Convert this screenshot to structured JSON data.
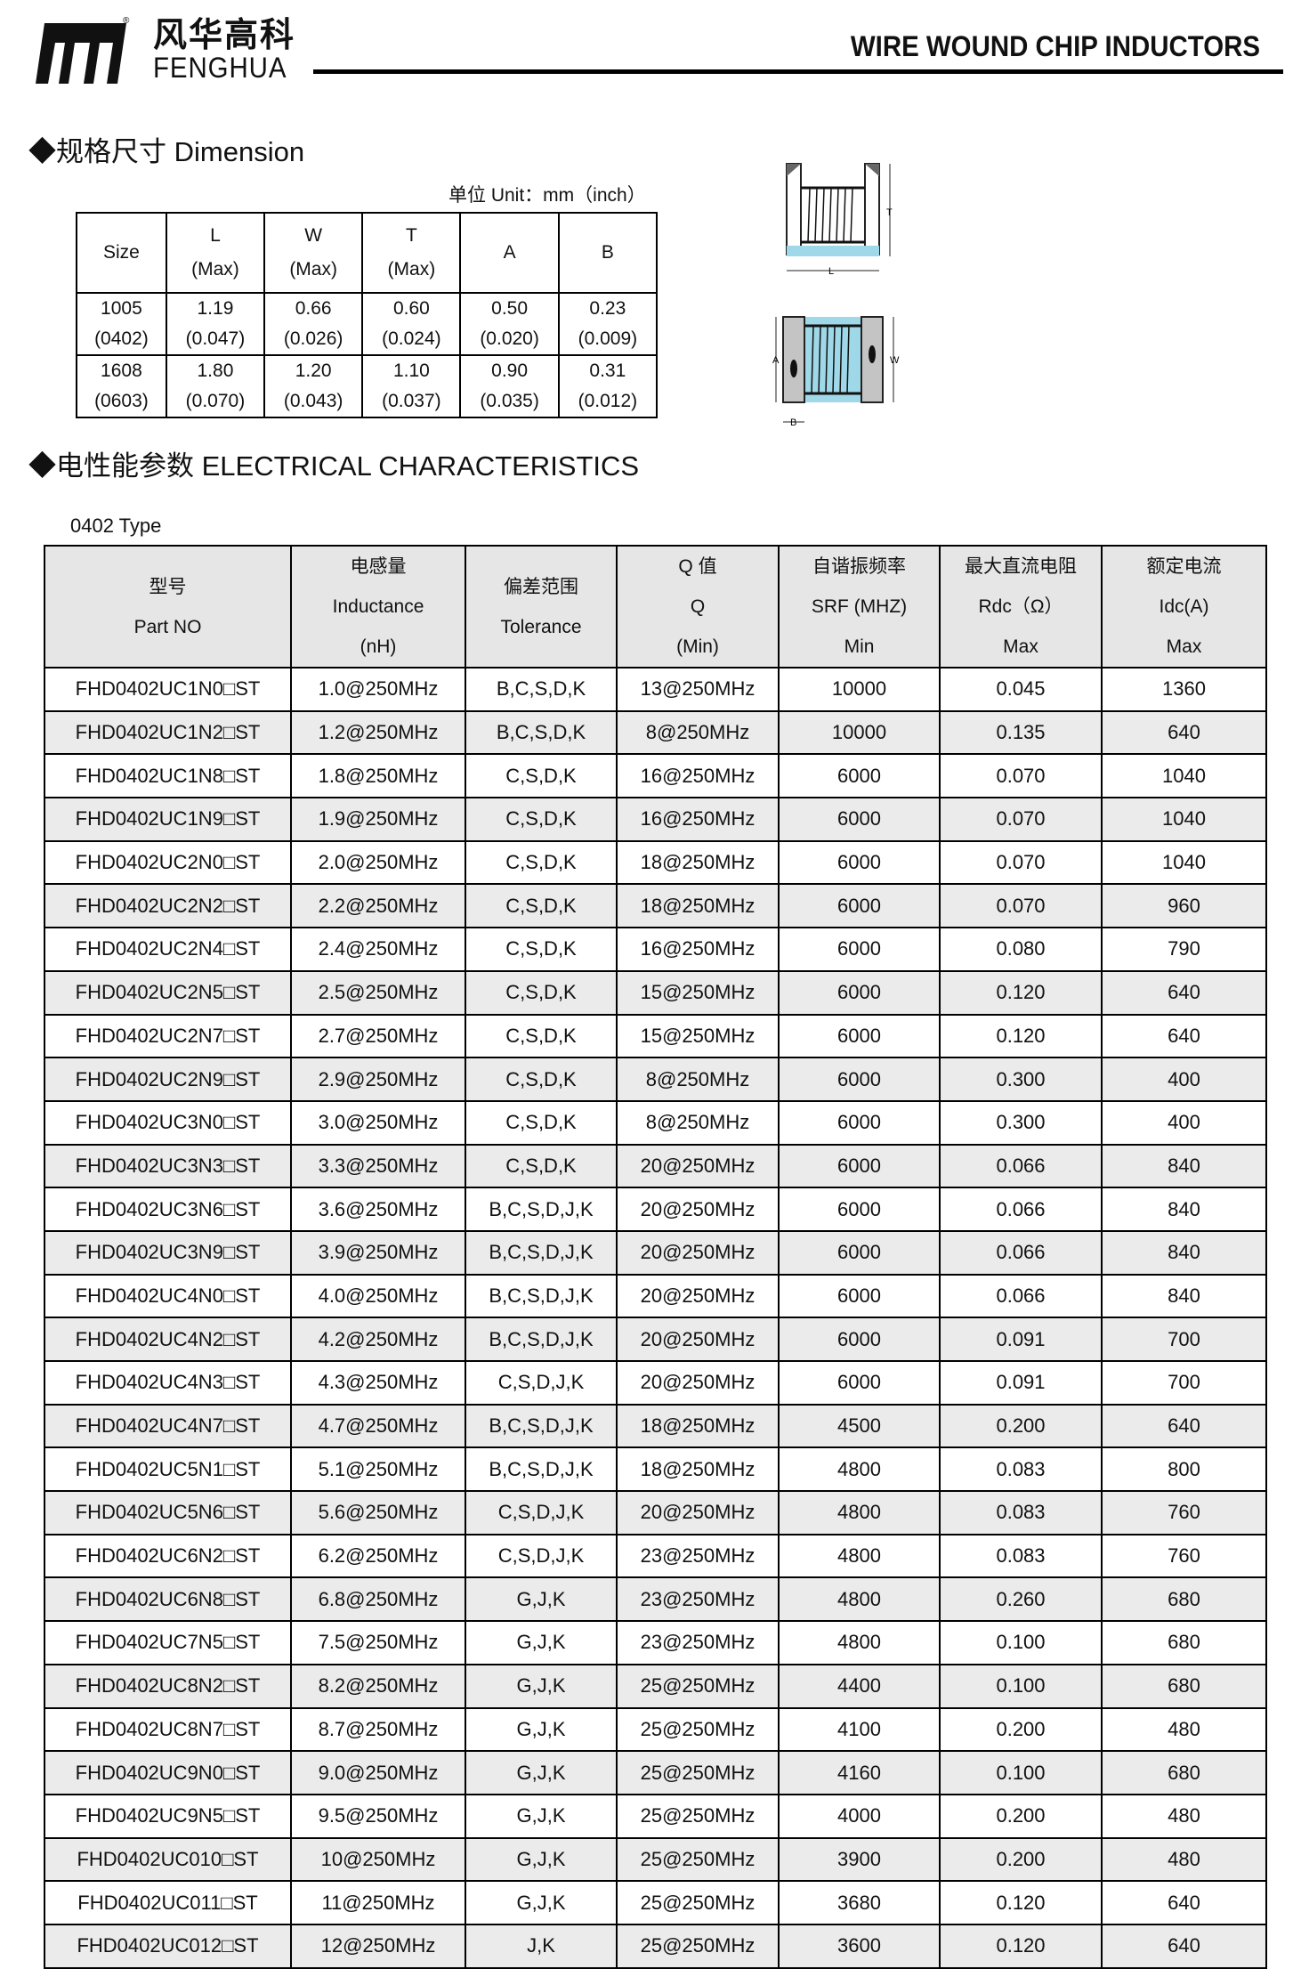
{
  "header": {
    "brand_cn": "风华高科",
    "brand_en": "FENGHUA",
    "logo_mark": "®",
    "title": "WIRE WOUND CHIP INDUCTORS"
  },
  "dimension": {
    "title": "◆规格尺寸 Dimension",
    "unit": "单位 Unit：mm（inch）",
    "headers": [
      [
        "Size",
        ""
      ],
      [
        "L",
        "(Max)"
      ],
      [
        "W",
        "(Max)"
      ],
      [
        "T",
        "(Max)"
      ],
      [
        "A",
        ""
      ],
      [
        "B",
        ""
      ]
    ],
    "rows": [
      [
        [
          "1005",
          "(0402)"
        ],
        [
          "1.19",
          "(0.047)"
        ],
        [
          "0.66",
          "(0.026)"
        ],
        [
          "0.60",
          "(0.024)"
        ],
        [
          "0.50",
          "(0.020)"
        ],
        [
          "0.23",
          "(0.009)"
        ]
      ],
      [
        [
          "1608",
          "(0603)"
        ],
        [
          "1.80",
          "(0.070)"
        ],
        [
          "1.20",
          "(0.043)"
        ],
        [
          "1.10",
          "(0.037)"
        ],
        [
          "0.90",
          "(0.035)"
        ],
        [
          "0.31",
          "(0.012)"
        ]
      ]
    ],
    "diagram_labels": {
      "T": "T",
      "L": "L",
      "A": "A",
      "W": "W",
      "B": "B"
    }
  },
  "electrical": {
    "title": "◆电性能参数  ELECTRICAL CHARACTERISTICS",
    "type_label": "0402 Type",
    "headers": [
      [
        "型号",
        "Part NO"
      ],
      [
        "电感量",
        "Inductance",
        "(nH)"
      ],
      [
        "偏差范围",
        "Tolerance"
      ],
      [
        "Q 值",
        "Q",
        "(Min)"
      ],
      [
        "自谐振频率",
        "SRF (MHZ)",
        "Min"
      ],
      [
        "最大直流电阻",
        "Rdc（Ω）",
        "Max"
      ],
      [
        "额定电流",
        "Idc(A)",
        "Max"
      ]
    ],
    "rows": [
      [
        "FHD0402UC1N0□ST",
        "1.0@250MHz",
        "B,C,S,D,K",
        "13@250MHz",
        "10000",
        "0.045",
        "1360"
      ],
      [
        "FHD0402UC1N2□ST",
        "1.2@250MHz",
        "B,C,S,D,K",
        "8@250MHz",
        "10000",
        "0.135",
        "640"
      ],
      [
        "FHD0402UC1N8□ST",
        "1.8@250MHz",
        "C,S,D,K",
        "16@250MHz",
        "6000",
        "0.070",
        "1040"
      ],
      [
        "FHD0402UC1N9□ST",
        "1.9@250MHz",
        "C,S,D,K",
        "16@250MHz",
        "6000",
        "0.070",
        "1040"
      ],
      [
        "FHD0402UC2N0□ST",
        "2.0@250MHz",
        "C,S,D,K",
        "18@250MHz",
        "6000",
        "0.070",
        "1040"
      ],
      [
        "FHD0402UC2N2□ST",
        "2.2@250MHz",
        "C,S,D,K",
        "18@250MHz",
        "6000",
        "0.070",
        "960"
      ],
      [
        "FHD0402UC2N4□ST",
        "2.4@250MHz",
        "C,S,D,K",
        "16@250MHz",
        "6000",
        "0.080",
        "790"
      ],
      [
        "FHD0402UC2N5□ST",
        "2.5@250MHz",
        "C,S,D,K",
        "15@250MHz",
        "6000",
        "0.120",
        "640"
      ],
      [
        "FHD0402UC2N7□ST",
        "2.7@250MHz",
        "C,S,D,K",
        "15@250MHz",
        "6000",
        "0.120",
        "640"
      ],
      [
        "FHD0402UC2N9□ST",
        "2.9@250MHz",
        "C,S,D,K",
        "8@250MHz",
        "6000",
        "0.300",
        "400"
      ],
      [
        "FHD0402UC3N0□ST",
        "3.0@250MHz",
        "C,S,D,K",
        "8@250MHz",
        "6000",
        "0.300",
        "400"
      ],
      [
        "FHD0402UC3N3□ST",
        "3.3@250MHz",
        "C,S,D,K",
        "20@250MHz",
        "6000",
        "0.066",
        "840"
      ],
      [
        "FHD0402UC3N6□ST",
        "3.6@250MHz",
        "B,C,S,D,J,K",
        "20@250MHz",
        "6000",
        "0.066",
        "840"
      ],
      [
        "FHD0402UC3N9□ST",
        "3.9@250MHz",
        "B,C,S,D,J,K",
        "20@250MHz",
        "6000",
        "0.066",
        "840"
      ],
      [
        "FHD0402UC4N0□ST",
        "4.0@250MHz",
        "B,C,S,D,J,K",
        "20@250MHz",
        "6000",
        "0.066",
        "840"
      ],
      [
        "FHD0402UC4N2□ST",
        "4.2@250MHz",
        "B,C,S,D,J,K",
        "20@250MHz",
        "6000",
        "0.091",
        "700"
      ],
      [
        "FHD0402UC4N3□ST",
        "4.3@250MHz",
        "C,S,D,J,K",
        "20@250MHz",
        "6000",
        "0.091",
        "700"
      ],
      [
        "FHD0402UC4N7□ST",
        "4.7@250MHz",
        "B,C,S,D,J,K",
        "18@250MHz",
        "4500",
        "0.200",
        "640"
      ],
      [
        "FHD0402UC5N1□ST",
        "5.1@250MHz",
        "B,C,S,D,J,K",
        "18@250MHz",
        "4800",
        "0.083",
        "800"
      ],
      [
        "FHD0402UC5N6□ST",
        "5.6@250MHz",
        "C,S,D,J,K",
        "20@250MHz",
        "4800",
        "0.083",
        "760"
      ],
      [
        "FHD0402UC6N2□ST",
        "6.2@250MHz",
        "C,S,D,J,K",
        "23@250MHz",
        "4800",
        "0.083",
        "760"
      ],
      [
        "FHD0402UC6N8□ST",
        "6.8@250MHz",
        "G,J,K",
        "23@250MHz",
        "4800",
        "0.260",
        "680"
      ],
      [
        "FHD0402UC7N5□ST",
        "7.5@250MHz",
        "G,J,K",
        "23@250MHz",
        "4800",
        "0.100",
        "680"
      ],
      [
        "FHD0402UC8N2□ST",
        "8.2@250MHz",
        "G,J,K",
        "25@250MHz",
        "4400",
        "0.100",
        "680"
      ],
      [
        "FHD0402UC8N7□ST",
        "8.7@250MHz",
        "G,J,K",
        "25@250MHz",
        "4100",
        "0.200",
        "480"
      ],
      [
        "FHD0402UC9N0□ST",
        "9.0@250MHz",
        "G,J,K",
        "25@250MHz",
        "4160",
        "0.100",
        "680"
      ],
      [
        "FHD0402UC9N5□ST",
        "9.5@250MHz",
        "G,J,K",
        "25@250MHz",
        "4000",
        "0.200",
        "480"
      ],
      [
        "FHD0402UC010□ST",
        "10@250MHz",
        "G,J,K",
        "25@250MHz",
        "3900",
        "0.200",
        "480"
      ],
      [
        "FHD0402UC011□ST",
        "11@250MHz",
        "G,J,K",
        "25@250MHz",
        "3680",
        "0.120",
        "640"
      ],
      [
        "FHD0402UC012□ST",
        "12@250MHz",
        "J,K",
        "25@250MHz",
        "3600",
        "0.120",
        "640"
      ]
    ]
  }
}
